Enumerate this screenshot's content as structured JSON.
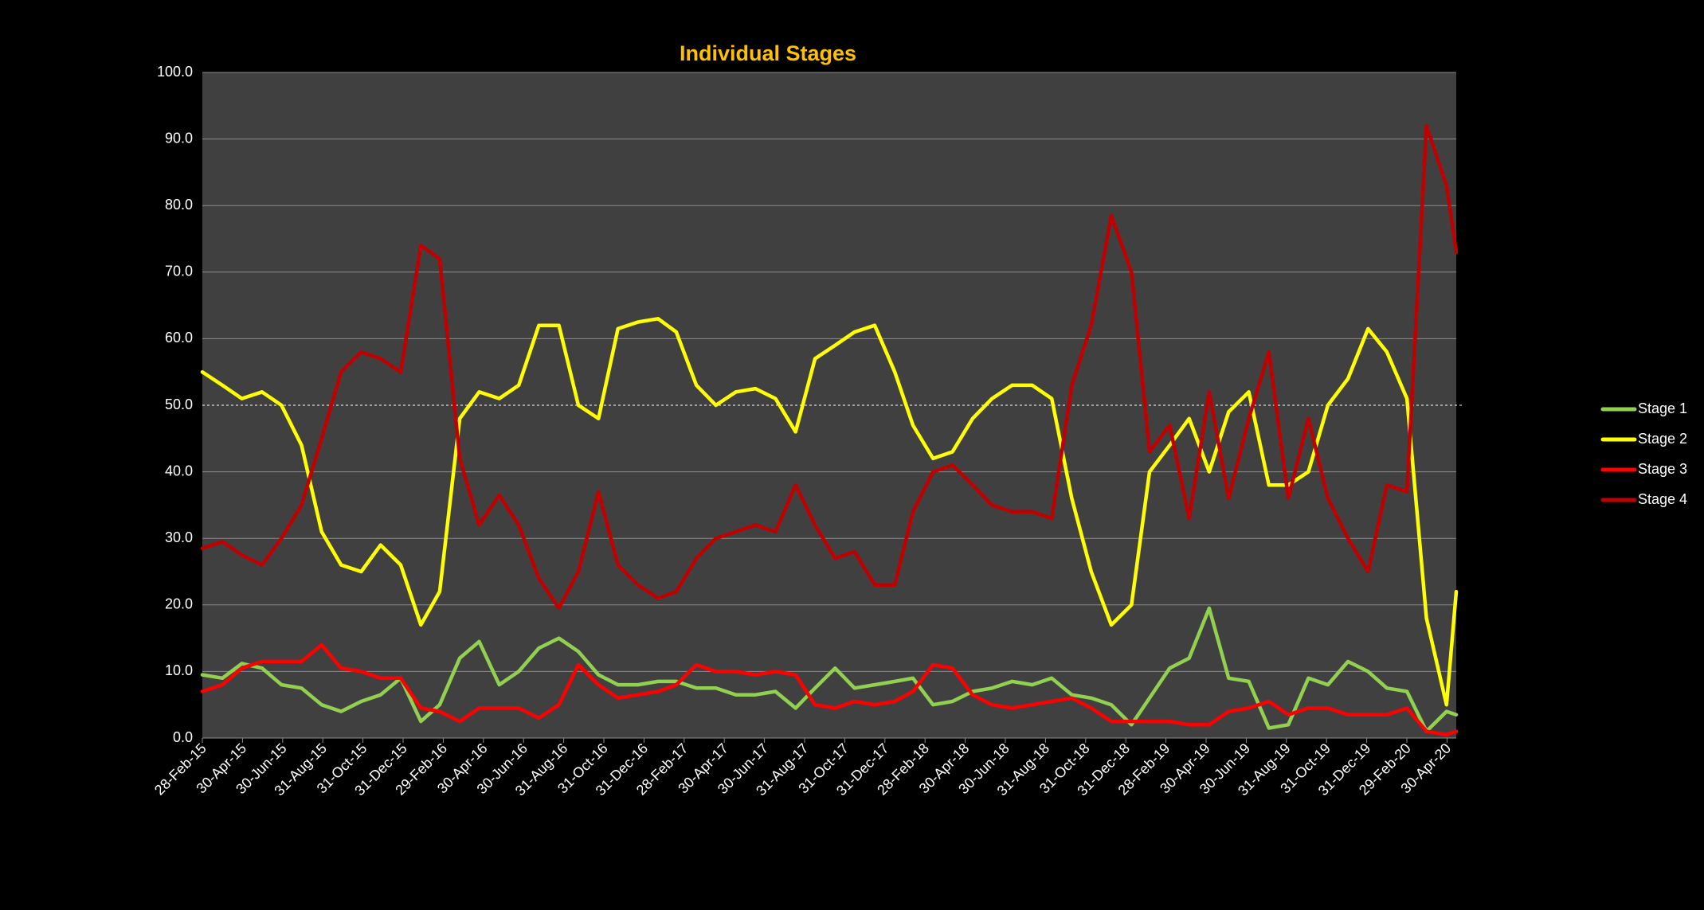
{
  "chart_data": {
    "type": "line",
    "title": "Individual Stages",
    "xlabel": "",
    "ylabel": "",
    "ylim": [
      0,
      100
    ],
    "y_ticks": [
      "0.0",
      "10.0",
      "20.0",
      "30.0",
      "40.0",
      "50.0",
      "60.0",
      "70.0",
      "80.0",
      "90.0",
      "100.0"
    ],
    "x_ticks": [
      "28-Feb-15",
      "30-Apr-15",
      "30-Jun-15",
      "31-Aug-15",
      "31-Oct-15",
      "31-Dec-15",
      "29-Feb-16",
      "30-Apr-16",
      "30-Jun-16",
      "31-Aug-16",
      "31-Oct-16",
      "31-Dec-16",
      "28-Feb-17",
      "30-Apr-17",
      "30-Jun-17",
      "31-Aug-17",
      "31-Oct-17",
      "31-Dec-17",
      "28-Feb-18",
      "30-Apr-18",
      "30-Jun-18",
      "31-Aug-18",
      "31-Oct-18",
      "31-Dec-18",
      "28-Feb-19",
      "30-Apr-19",
      "30-Jun-19",
      "31-Aug-19",
      "31-Oct-19",
      "31-Dec-19",
      "29-Feb-20",
      "30-Apr-20"
    ],
    "reference_line": 50,
    "grid": true,
    "legend_position": "right",
    "x": [
      "2015-02-28",
      "2015-03-31",
      "2015-04-30",
      "2015-05-31",
      "2015-06-30",
      "2015-07-31",
      "2015-08-31",
      "2015-09-30",
      "2015-10-31",
      "2015-11-30",
      "2015-12-31",
      "2016-01-31",
      "2016-02-29",
      "2016-03-31",
      "2016-04-30",
      "2016-05-31",
      "2016-06-30",
      "2016-07-31",
      "2016-08-31",
      "2016-09-30",
      "2016-10-31",
      "2016-11-30",
      "2016-12-31",
      "2017-01-31",
      "2017-02-28",
      "2017-03-31",
      "2017-04-30",
      "2017-05-31",
      "2017-06-30",
      "2017-07-31",
      "2017-08-31",
      "2017-09-30",
      "2017-10-31",
      "2017-11-30",
      "2017-12-31",
      "2018-01-31",
      "2018-02-28",
      "2018-03-31",
      "2018-04-30",
      "2018-05-31",
      "2018-06-30",
      "2018-07-31",
      "2018-08-31",
      "2018-09-30",
      "2018-10-31",
      "2018-11-30",
      "2018-12-31",
      "2019-01-31",
      "2019-02-28",
      "2019-03-31",
      "2019-04-30",
      "2019-05-31",
      "2019-06-30",
      "2019-07-31",
      "2019-08-31",
      "2019-09-30",
      "2019-10-31",
      "2019-11-30",
      "2019-12-31",
      "2020-01-31",
      "2020-02-29",
      "2020-03-31",
      "2020-04-30",
      "2020-05-31",
      "2020-06-15"
    ],
    "series": [
      {
        "name": "Stage 1",
        "color": "#92D050",
        "values": [
          9.5,
          9.0,
          11.2,
          10.5,
          8.0,
          7.5,
          5.0,
          4.0,
          5.5,
          6.5,
          9.0,
          2.5,
          5.0,
          12.0,
          14.5,
          8.0,
          10.0,
          13.5,
          15.0,
          13.0,
          9.5,
          8.0,
          8.0,
          8.5,
          8.5,
          7.5,
          7.5,
          6.5,
          6.5,
          7.0,
          4.5,
          7.5,
          10.5,
          7.5,
          8.0,
          8.5,
          9.0,
          5.0,
          5.5,
          7.0,
          7.5,
          8.5,
          8.0,
          9.0,
          6.5,
          6.0,
          5.0,
          2.0,
          6.0,
          10.5,
          12.0,
          19.5,
          9.0,
          8.5,
          1.5,
          2.0,
          9.0,
          8.0,
          11.5,
          10.0,
          7.5,
          7.0,
          1.0,
          4.0,
          3.5
        ]
      },
      {
        "name": "Stage 2",
        "color": "#FFFF00",
        "values": [
          55.0,
          53.0,
          51.0,
          52.0,
          50.0,
          44.0,
          31.0,
          26.0,
          25.0,
          29.0,
          26.0,
          17.0,
          22.0,
          48.0,
          52.0,
          51.0,
          53.0,
          62.0,
          62.0,
          50.0,
          48.0,
          61.5,
          62.5,
          63.0,
          61.0,
          53.0,
          50.0,
          52.0,
          52.5,
          51.0,
          46.0,
          57.0,
          59.0,
          61.0,
          62.0,
          55.0,
          47.0,
          42.0,
          43.0,
          48.0,
          51.0,
          53.0,
          53.0,
          51.0,
          36.0,
          25.0,
          17.0,
          20.0,
          40.0,
          44.0,
          48.0,
          40.0,
          49.0,
          52.0,
          38.0,
          38.0,
          40.0,
          50.0,
          54.0,
          61.5,
          58.0,
          51.0,
          18.0,
          5.0,
          22.0
        ]
      },
      {
        "name": "Stage 3",
        "color": "#FF0000",
        "values": [
          7.0,
          8.0,
          10.5,
          11.5,
          11.5,
          11.5,
          14.0,
          10.5,
          10.0,
          9.0,
          9.0,
          4.5,
          4.0,
          2.5,
          4.5,
          4.5,
          4.5,
          3.0,
          5.0,
          11.0,
          8.0,
          6.0,
          6.5,
          7.0,
          8.0,
          11.0,
          10.0,
          10.0,
          9.5,
          10.0,
          9.5,
          5.0,
          4.5,
          5.5,
          5.0,
          5.5,
          7.0,
          11.0,
          10.5,
          6.5,
          5.0,
          4.5,
          5.0,
          5.5,
          6.0,
          4.5,
          2.5,
          2.5,
          2.5,
          2.5,
          2.0,
          2.0,
          4.0,
          4.5,
          5.5,
          3.5,
          4.5,
          4.5,
          3.5,
          3.5,
          3.5,
          4.5,
          1.0,
          0.5,
          1.0
        ]
      },
      {
        "name": "Stage 4",
        "color": "#C00000",
        "values": [
          28.5,
          29.5,
          27.5,
          26.0,
          30.0,
          35.0,
          45.0,
          55.0,
          58.0,
          57.0,
          55.0,
          74.0,
          72.0,
          42.0,
          32.0,
          36.5,
          32.0,
          24.0,
          19.5,
          25.0,
          37.0,
          26.0,
          23.0,
          21.0,
          22.0,
          27.0,
          30.0,
          31.0,
          32.0,
          31.0,
          38.0,
          32.0,
          27.0,
          28.0,
          23.0,
          23.0,
          34.0,
          40.0,
          41.0,
          38.0,
          35.0,
          34.0,
          34.0,
          33.0,
          53.0,
          62.0,
          78.5,
          70.0,
          43.0,
          47.0,
          33.0,
          52.0,
          36.0,
          48.0,
          58.0,
          36.0,
          48.0,
          36.0,
          30.0,
          25.0,
          38.0,
          37.0,
          92.0,
          83.0,
          73.0
        ]
      }
    ]
  }
}
